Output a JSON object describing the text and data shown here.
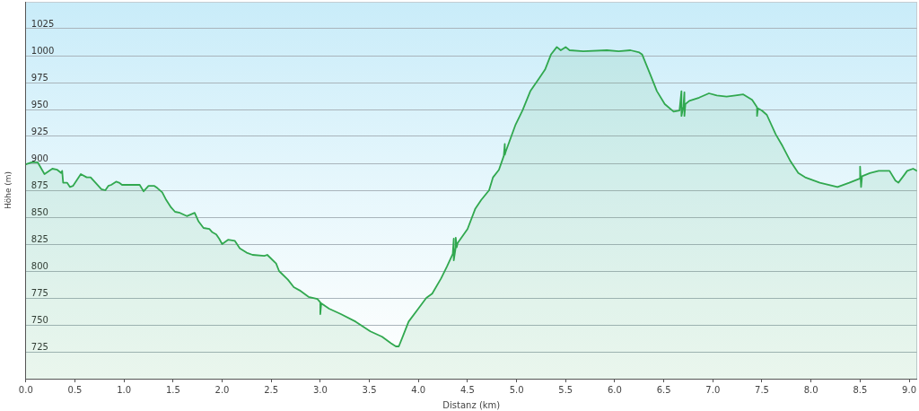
{
  "chart_data": {
    "type": "area",
    "xlabel": "Distanz (km)",
    "ylabel": "Höhe (m)",
    "color": "#31a84f",
    "marker": "none",
    "grid": "y",
    "xlim": [
      0,
      9.08
    ],
    "ylim": [
      700,
      1050
    ],
    "xticks": [
      {
        "value": 0,
        "label": "0.0"
      },
      0.5,
      {
        "value": 1,
        "label": "1.0"
      },
      1.5,
      {
        "value": 2,
        "label": "2.0"
      },
      2.5,
      {
        "value": 3,
        "label": "3.0"
      },
      3.5,
      {
        "value": 4,
        "label": "4.0"
      },
      4.5,
      {
        "value": 5,
        "label": "5.0"
      },
      5.5,
      {
        "value": 6,
        "label": "6.0"
      },
      6.5,
      {
        "value": 7,
        "label": "7.0"
      },
      7.5,
      {
        "value": 8,
        "label": "8.0"
      },
      8.5,
      {
        "value": 9,
        "label": "9.0"
      }
    ],
    "yticks": [
      725,
      750,
      775,
      800,
      825,
      850,
      875,
      900,
      925,
      950,
      975,
      1000,
      1025
    ],
    "x": [
      0,
      0.06,
      0.12,
      0.19,
      0.27,
      0.32,
      0.36,
      0.37,
      0.38,
      0.42,
      0.45,
      0.48,
      0.56,
      0.62,
      0.66,
      0.71,
      0.77,
      0.81,
      0.84,
      0.87,
      0.92,
      0.95,
      0.98,
      1.16,
      1.2,
      1.25,
      1.31,
      1.34,
      1.39,
      1.43,
      1.48,
      1.52,
      1.57,
      1.64,
      1.72,
      1.76,
      1.81,
      1.87,
      1.9,
      1.94,
      1.97,
      2.0,
      2.06,
      2.13,
      2.18,
      2.25,
      2.31,
      2.43,
      2.46,
      2.55,
      2.58,
      2.67,
      2.73,
      2.79,
      2.88,
      2.97,
      3.0,
      3.0,
      3.01,
      3.09,
      3.21,
      3.36,
      3.51,
      3.63,
      3.72,
      3.77,
      3.8,
      3.84,
      3.9,
      3.99,
      4.08,
      4.14,
      4.23,
      4.29,
      4.35,
      4.36,
      4.36,
      4.38,
      4.38,
      4.39,
      4.4,
      4.5,
      4.58,
      4.64,
      4.72,
      4.76,
      4.82,
      4.87,
      4.88,
      4.88,
      4.89,
      4.99,
      5.06,
      5.14,
      5.23,
      5.29,
      5.35,
      5.41,
      5.45,
      5.5,
      5.54,
      5.68,
      5.92,
      6.04,
      6.16,
      6.25,
      6.28,
      6.36,
      6.43,
      6.51,
      6.6,
      6.66,
      6.68,
      6.68,
      6.7,
      6.71,
      6.71,
      6.72,
      6.76,
      6.86,
      6.96,
      7.04,
      7.14,
      7.23,
      7.31,
      7.4,
      7.45,
      7.45,
      7.46,
      7.5,
      7.55,
      7.64,
      7.71,
      7.79,
      7.87,
      7.94,
      8.09,
      8.27,
      8.39,
      8.5,
      8.5,
      8.51,
      8.52,
      8.6,
      8.69,
      8.8,
      8.86,
      8.89,
      8.94,
      8.98,
      9.04,
      9.08
    ],
    "values": [
      899,
      901,
      901,
      890,
      895,
      894,
      891,
      893,
      882,
      882,
      878,
      879,
      890,
      887,
      887,
      882,
      876,
      875,
      879,
      880,
      883,
      882,
      880,
      880,
      874,
      879,
      879,
      877,
      873,
      866,
      859,
      855,
      854,
      851,
      854,
      846,
      840,
      839,
      836,
      834,
      830,
      825,
      829,
      828,
      821,
      817,
      815,
      814,
      815,
      807,
      800,
      792,
      785,
      782,
      776,
      774,
      771,
      760,
      770,
      765,
      760,
      753,
      744,
      739,
      733,
      730,
      730,
      739,
      753,
      764,
      775,
      779,
      793,
      804,
      816,
      830,
      810,
      822,
      831,
      822,
      826,
      839,
      858,
      866,
      875,
      887,
      894,
      907,
      918,
      908,
      911,
      936,
      949,
      967,
      979,
      987,
      1001,
      1008,
      1005,
      1008,
      1005,
      1004,
      1005,
      1004,
      1005,
      1003,
      1001,
      983,
      967,
      955,
      948,
      949,
      967,
      944,
      953,
      966,
      944,
      955,
      958,
      961,
      965,
      963,
      962,
      963,
      964,
      959,
      952,
      944,
      951,
      949,
      945,
      927,
      916,
      902,
      891,
      887,
      882,
      878,
      882,
      886,
      897,
      878,
      888,
      891,
      893,
      893,
      884,
      882,
      888,
      893,
      895,
      893
    ]
  }
}
